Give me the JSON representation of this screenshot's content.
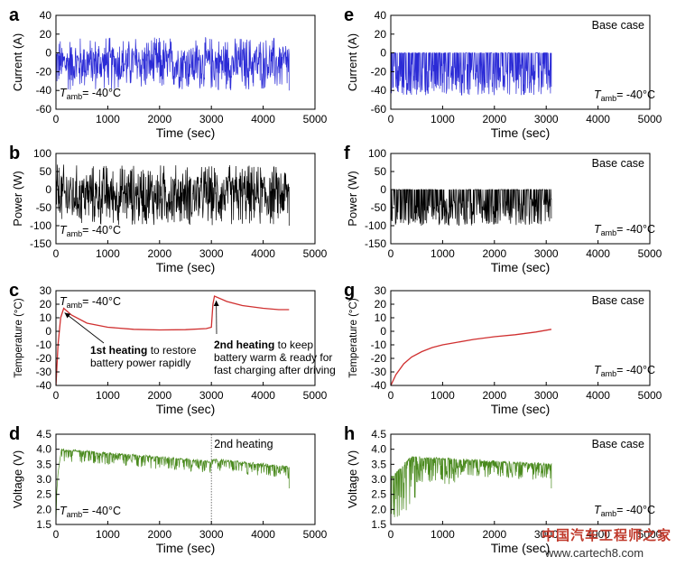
{
  "chart_data": [
    {
      "id": "a",
      "panel_label": "a",
      "type": "line",
      "xlabel": "Time (sec)",
      "ylabel": "Current (A)",
      "xlim": [
        0,
        5000
      ],
      "ylim": [
        -60,
        40
      ],
      "xticks": [
        0,
        1000,
        2000,
        3000,
        4000,
        5000
      ],
      "yticks": [
        -60,
        -40,
        -20,
        0,
        20,
        40
      ],
      "annotation_prefix": "T",
      "annotation_sub": "amb",
      "annotation_suffix": "= -40°C",
      "series": [
        {
          "name": "Current",
          "color": "#2b2bd6",
          "x_range": [
            0,
            4500
          ],
          "profile": "fluctuating",
          "mean": -10,
          "range": [
            -40,
            17
          ]
        }
      ]
    },
    {
      "id": "b",
      "panel_label": "b",
      "type": "line",
      "xlabel": "Time (sec)",
      "ylabel": "Power (W)",
      "xlim": [
        0,
        5000
      ],
      "ylim": [
        -150,
        100
      ],
      "xticks": [
        0,
        1000,
        2000,
        3000,
        4000,
        5000
      ],
      "yticks": [
        -150,
        -100,
        -50,
        0,
        50,
        100
      ],
      "annotation_prefix": "T",
      "annotation_sub": "amb",
      "annotation_suffix": "= -40°C",
      "series": [
        {
          "name": "Power",
          "color": "#000000",
          "x_range": [
            0,
            4500
          ],
          "profile": "fluctuating",
          "mean": -15,
          "range": [
            -100,
            70
          ]
        }
      ]
    },
    {
      "id": "c",
      "panel_label": "c",
      "type": "line",
      "xlabel": "Time (sec)",
      "ylabel": "Temperature (°C)",
      "xlim": [
        0,
        5000
      ],
      "ylim": [
        -40,
        30
      ],
      "xticks": [
        0,
        1000,
        2000,
        3000,
        4000,
        5000
      ],
      "yticks": [
        -40,
        -30,
        -20,
        -10,
        0,
        10,
        20,
        30
      ],
      "annotation_prefix": "T",
      "annotation_sub": "amb",
      "annotation_suffix": "= -40°C",
      "series": [
        {
          "name": "Temperature",
          "color": "#d03030",
          "points": [
            [
              0,
              -40
            ],
            [
              40,
              -10
            ],
            [
              90,
              10
            ],
            [
              150,
              17
            ],
            [
              300,
              12
            ],
            [
              600,
              6
            ],
            [
              1000,
              3
            ],
            [
              1500,
              1.5
            ],
            [
              2000,
              1
            ],
            [
              2500,
              1.2
            ],
            [
              2900,
              2
            ],
            [
              3000,
              3
            ],
            [
              3030,
              20
            ],
            [
              3060,
              26
            ],
            [
              3300,
              22
            ],
            [
              3600,
              19
            ],
            [
              4000,
              17
            ],
            [
              4300,
              16
            ],
            [
              4500,
              16
            ]
          ]
        }
      ],
      "callouts": [
        {
          "bold": "1st heating",
          "rest": " to restore",
          "line2": "battery power rapidly",
          "target": [
            150,
            17
          ]
        },
        {
          "bold": "2nd heating",
          "rest": " to keep",
          "line2": "battery warm & ready for",
          "line3": "fast charging after driving",
          "target": [
            3060,
            26
          ]
        }
      ]
    },
    {
      "id": "d",
      "panel_label": "d",
      "type": "line",
      "xlabel": "Time (sec)",
      "ylabel": "Voltage (V)",
      "xlim": [
        0,
        5000
      ],
      "ylim": [
        1.5,
        4.5
      ],
      "xticks": [
        0,
        1000,
        2000,
        3000,
        4000,
        5000
      ],
      "yticks": [
        1.5,
        2.0,
        2.5,
        3.0,
        3.5,
        4.0,
        4.5
      ],
      "annotation_prefix": "T",
      "annotation_sub": "amb",
      "annotation_suffix": "= -40°C",
      "vline_x": 3000,
      "vline_label": "2nd heating",
      "series": [
        {
          "name": "Voltage",
          "color": "#4a8a1e",
          "x_range": [
            0,
            4500
          ],
          "profile": "voltage_heated"
        }
      ]
    },
    {
      "id": "e",
      "panel_label": "e",
      "type": "line",
      "xlabel": "Time (sec)",
      "ylabel": "Current (A)",
      "xlim": [
        0,
        5000
      ],
      "ylim": [
        -60,
        40
      ],
      "xticks": [
        0,
        1000,
        2000,
        3000,
        4000,
        5000
      ],
      "yticks": [
        -60,
        -40,
        -20,
        0,
        20,
        40
      ],
      "case_label": "Base case",
      "annotation_prefix": "T",
      "annotation_sub": "amb",
      "annotation_suffix": "= -40°C",
      "series": [
        {
          "name": "Current",
          "color": "#2b2bd6",
          "x_range": [
            0,
            3100
          ],
          "profile": "negative_spikes",
          "baseline": 0,
          "min": -45
        }
      ]
    },
    {
      "id": "f",
      "panel_label": "f",
      "type": "line",
      "xlabel": "Time (sec)",
      "ylabel": "Power (W)",
      "xlim": [
        0,
        5000
      ],
      "ylim": [
        -150,
        100
      ],
      "xticks": [
        0,
        1000,
        2000,
        3000,
        4000,
        5000
      ],
      "yticks": [
        -150,
        -100,
        -50,
        0,
        50,
        100
      ],
      "case_label": "Base case",
      "annotation_prefix": "T",
      "annotation_sub": "amb",
      "annotation_suffix": "= -40°C",
      "series": [
        {
          "name": "Power",
          "color": "#000000",
          "x_range": [
            0,
            3100
          ],
          "profile": "negative_spikes",
          "baseline": 0,
          "min": -100
        }
      ]
    },
    {
      "id": "g",
      "panel_label": "g",
      "type": "line",
      "xlabel": "Time (sec)",
      "ylabel": "Temperature (°C)",
      "xlim": [
        0,
        5000
      ],
      "ylim": [
        -40,
        30
      ],
      "xticks": [
        0,
        1000,
        2000,
        3000,
        4000,
        5000
      ],
      "yticks": [
        -40,
        -30,
        -20,
        -10,
        0,
        10,
        20,
        30
      ],
      "case_label": "Base case",
      "annotation_prefix": "T",
      "annotation_sub": "amb",
      "annotation_suffix": "= -40°C",
      "series": [
        {
          "name": "Temperature",
          "color": "#d03030",
          "points": [
            [
              0,
              -40
            ],
            [
              100,
              -32
            ],
            [
              250,
              -24
            ],
            [
              400,
              -19
            ],
            [
              600,
              -15
            ],
            [
              800,
              -12
            ],
            [
              1000,
              -10
            ],
            [
              1300,
              -8
            ],
            [
              1600,
              -6
            ],
            [
              2000,
              -4
            ],
            [
              2400,
              -2.5
            ],
            [
              2800,
              -0.5
            ],
            [
              3100,
              1.5
            ]
          ]
        }
      ]
    },
    {
      "id": "h",
      "panel_label": "h",
      "type": "line",
      "xlabel": "Time (sec)",
      "ylabel": "Voltage (V)",
      "xlim": [
        0,
        5000
      ],
      "ylim": [
        1.5,
        4.5
      ],
      "xticks": [
        0,
        1000,
        2000,
        3000,
        4000,
        5000
      ],
      "yticks": [
        1.5,
        2.0,
        2.5,
        3.0,
        3.5,
        4.0,
        4.5
      ],
      "case_label": "Base case",
      "annotation_prefix": "T",
      "annotation_sub": "amb",
      "annotation_suffix": "= -40°C",
      "series": [
        {
          "name": "Voltage",
          "color": "#4a8a1e",
          "x_range": [
            0,
            3100
          ],
          "profile": "voltage_base"
        }
      ]
    }
  ],
  "watermark": {
    "line1": "中国汽车工程师之家",
    "line2": "www.cartech8.com"
  }
}
